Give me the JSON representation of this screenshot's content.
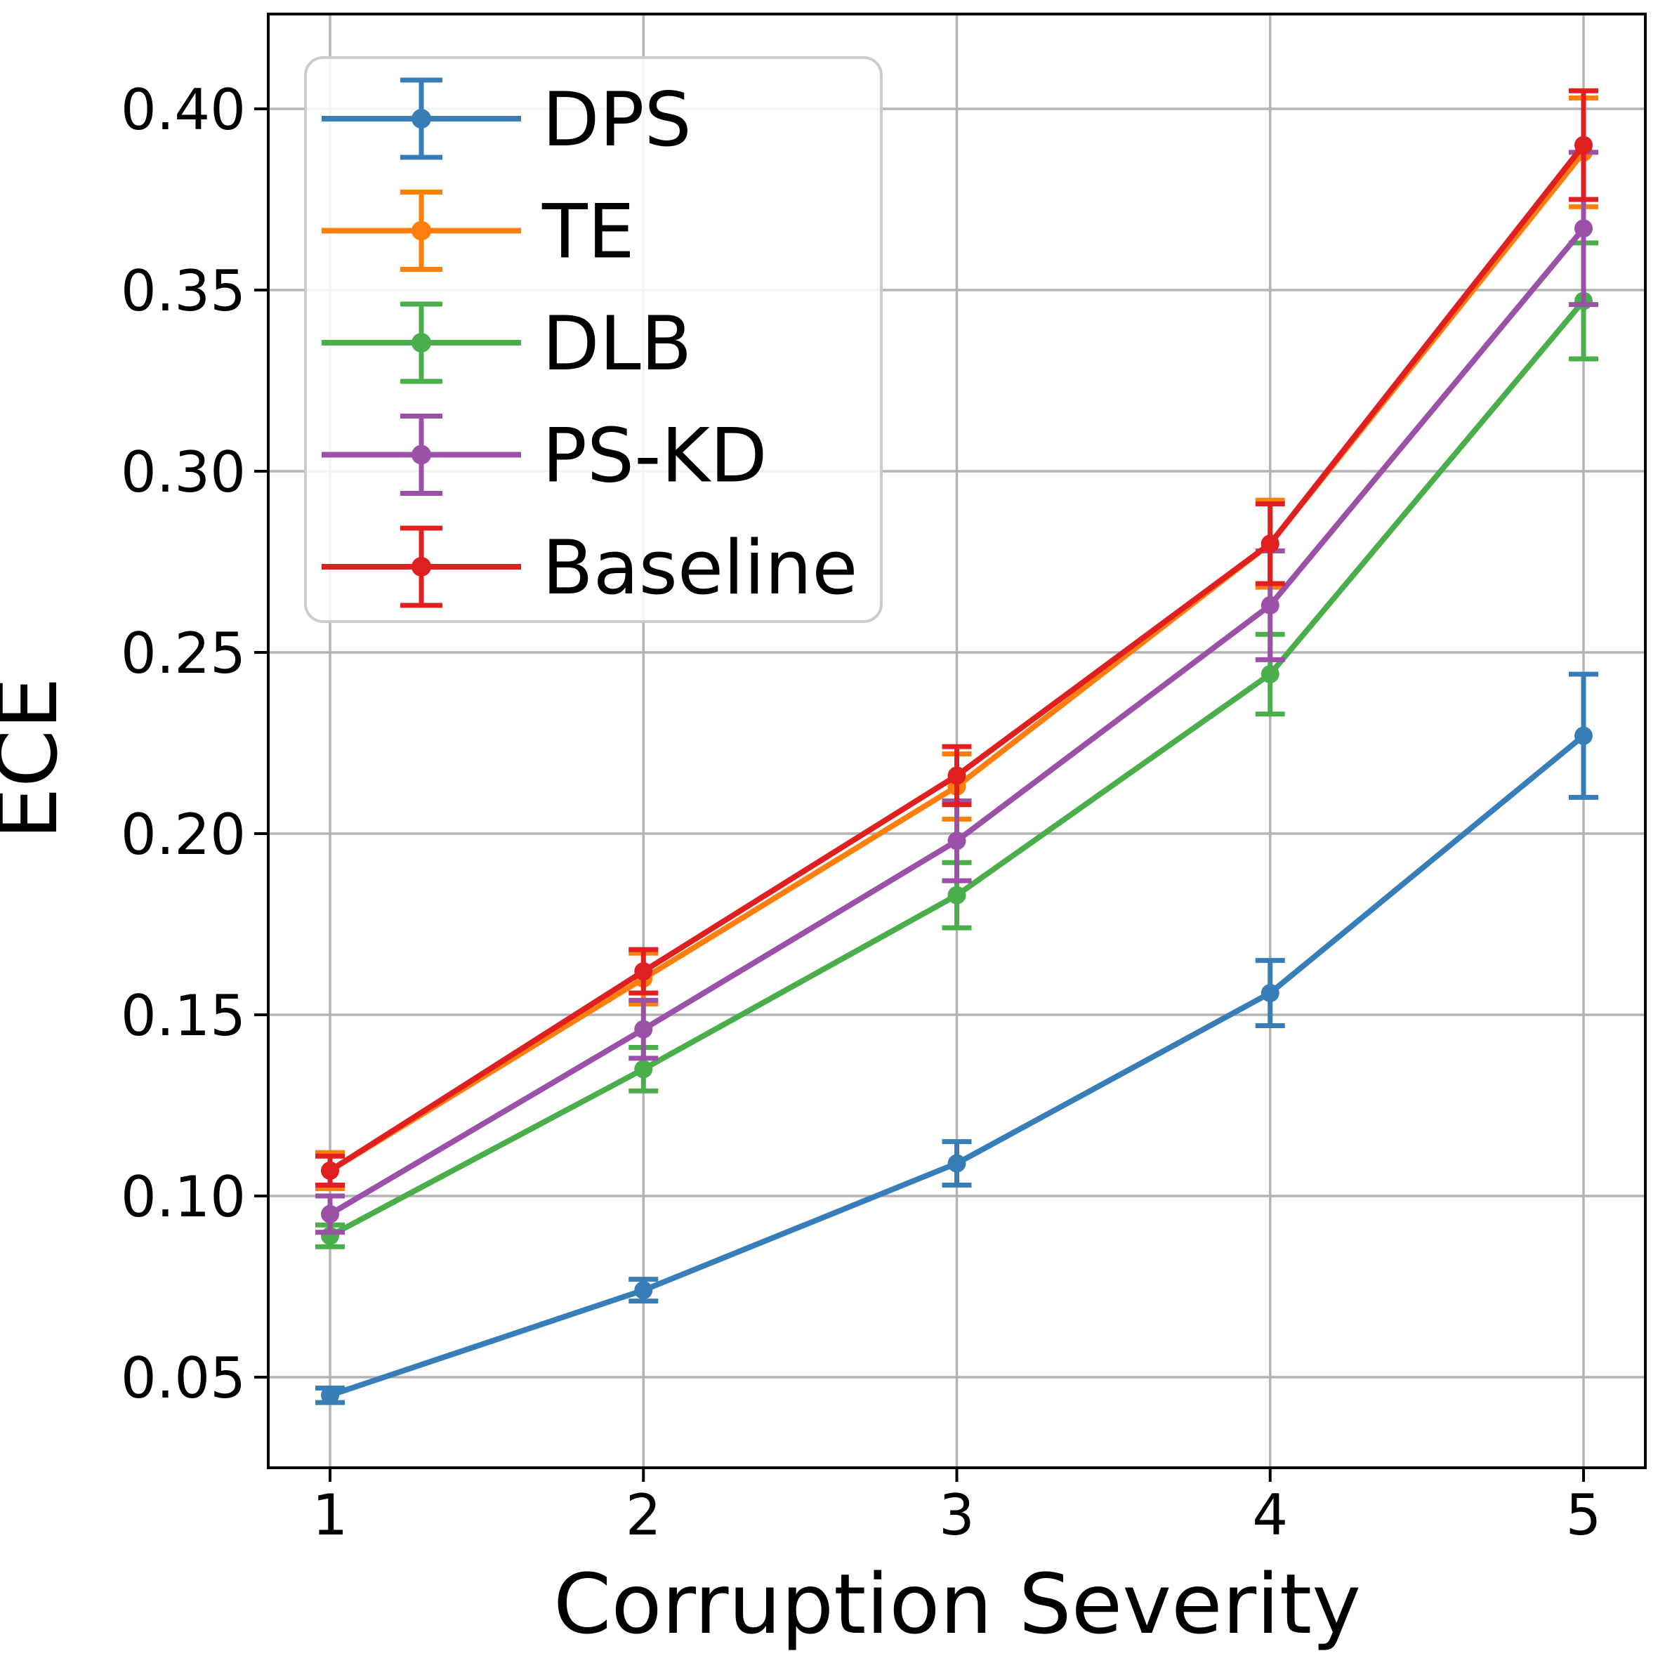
{
  "figure": {
    "type": "matplotlib-style line chart with error bars",
    "background_color": "#ffffff",
    "grid_color": "#b3b3b3",
    "spine_color": "#000000",
    "legend_border_color": "#cccccc"
  },
  "axes": {
    "xlabel": "Corruption Severity",
    "ylabel": "ECE",
    "x_tick_labels": [
      "1",
      "2",
      "3",
      "4",
      "5"
    ],
    "y_tick_labels": [
      "0.05",
      "0.10",
      "0.15",
      "0.20",
      "0.25",
      "0.30",
      "0.35",
      "0.40"
    ]
  },
  "chart_data": {
    "type": "line",
    "title": "",
    "xlabel": "Corruption Severity",
    "ylabel": "ECE",
    "x": [
      1,
      2,
      3,
      4,
      5
    ],
    "xlim": [
      0.8,
      5.2
    ],
    "ylim": [
      0.025,
      0.426
    ],
    "y_ticks": [
      0.05,
      0.1,
      0.15,
      0.2,
      0.25,
      0.3,
      0.35,
      0.4
    ],
    "grid": true,
    "legend_position": "upper left",
    "error_bars": true,
    "marker": "circle",
    "series": [
      {
        "name": "DPS",
        "color": "#377eb8",
        "values": [
          0.045,
          0.074,
          0.109,
          0.156,
          0.227
        ],
        "errors": [
          0.002,
          0.003,
          0.006,
          0.009,
          0.017
        ]
      },
      {
        "name": "TE",
        "color": "#ff7f0e",
        "values": [
          0.107,
          0.16,
          0.213,
          0.28,
          0.388
        ],
        "errors": [
          0.005,
          0.007,
          0.009,
          0.012,
          0.015
        ]
      },
      {
        "name": "DLB",
        "color": "#4aae4a",
        "values": [
          0.089,
          0.135,
          0.183,
          0.244,
          0.347
        ],
        "errors": [
          0.003,
          0.006,
          0.009,
          0.011,
          0.016
        ]
      },
      {
        "name": "PS-KD",
        "color": "#9b51a8",
        "values": [
          0.095,
          0.146,
          0.198,
          0.263,
          0.367
        ],
        "errors": [
          0.005,
          0.008,
          0.011,
          0.015,
          0.021
        ]
      },
      {
        "name": "Baseline",
        "color": "#e02020",
        "values": [
          0.107,
          0.162,
          0.216,
          0.28,
          0.39
        ],
        "errors": [
          0.004,
          0.006,
          0.008,
          0.011,
          0.015
        ]
      }
    ]
  }
}
